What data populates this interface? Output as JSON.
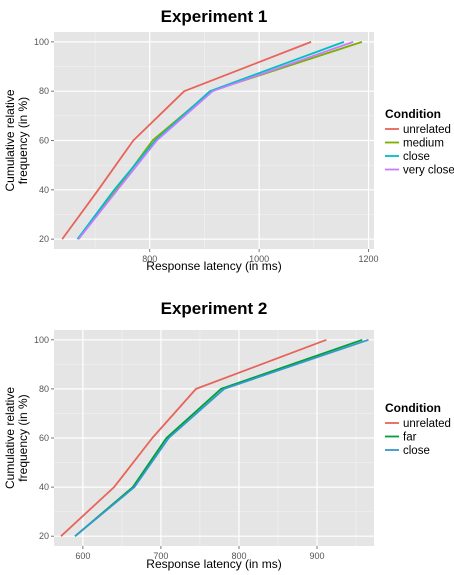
{
  "chart_data": [
    {
      "type": "line",
      "title": "Experiment 1",
      "xlabel": "Response latency (in ms)",
      "ylabel": "Cumulative relative frequency (in %)",
      "ylabel_lines": [
        "Cumulative relative",
        "frequency (in %)"
      ],
      "xlim": [
        625,
        1210
      ],
      "ylim": [
        16,
        104
      ],
      "xticks": [
        800,
        1000,
        1200
      ],
      "yticks": [
        20,
        40,
        60,
        80,
        100
      ],
      "grid": true,
      "legend": {
        "title": "Condition",
        "position": "right"
      },
      "series": [
        {
          "name": "unrelated",
          "color": "#E8645A",
          "x": [
            640,
            706,
            770,
            863,
            1095
          ],
          "y": [
            20,
            40,
            60,
            80,
            100
          ]
        },
        {
          "name": "medium",
          "color": "#7CAE00",
          "x": [
            668,
            739,
            805,
            912,
            1188
          ],
          "y": [
            20,
            40,
            60,
            80,
            100
          ]
        },
        {
          "name": "close",
          "color": "#00BFC4",
          "x": [
            668,
            735,
            810,
            910,
            1155
          ],
          "y": [
            20,
            40,
            60,
            80,
            100
          ]
        },
        {
          "name": "very close",
          "color": "#C77CFF",
          "x": [
            670,
            741,
            813,
            915,
            1172
          ],
          "y": [
            20,
            40,
            60,
            80,
            100
          ]
        }
      ]
    },
    {
      "type": "line",
      "title": "Experiment 2",
      "xlabel": "Response latency (in ms)",
      "ylabel": "Cumulative relative frequency (in %)",
      "ylabel_lines": [
        "Cumulative relative",
        "frequency (in %)"
      ],
      "xlim": [
        563,
        973
      ],
      "ylim": [
        16,
        104
      ],
      "xticks": [
        600,
        700,
        800,
        900
      ],
      "yticks": [
        20,
        40,
        60,
        80,
        100
      ],
      "grid": true,
      "legend": {
        "title": "Condition",
        "position": "right"
      },
      "series": [
        {
          "name": "unrelated",
          "color": "#E8645A",
          "x": [
            572,
            640,
            689,
            745,
            912
          ],
          "y": [
            20,
            40,
            60,
            80,
            100
          ]
        },
        {
          "name": "far",
          "color": "#00A038",
          "x": [
            590,
            664,
            707,
            777,
            958
          ],
          "y": [
            20,
            40,
            60,
            80,
            100
          ]
        },
        {
          "name": "close",
          "color": "#3399CC",
          "x": [
            590,
            666,
            710,
            781,
            966
          ],
          "y": [
            20,
            40,
            60,
            80,
            100
          ]
        }
      ]
    }
  ]
}
